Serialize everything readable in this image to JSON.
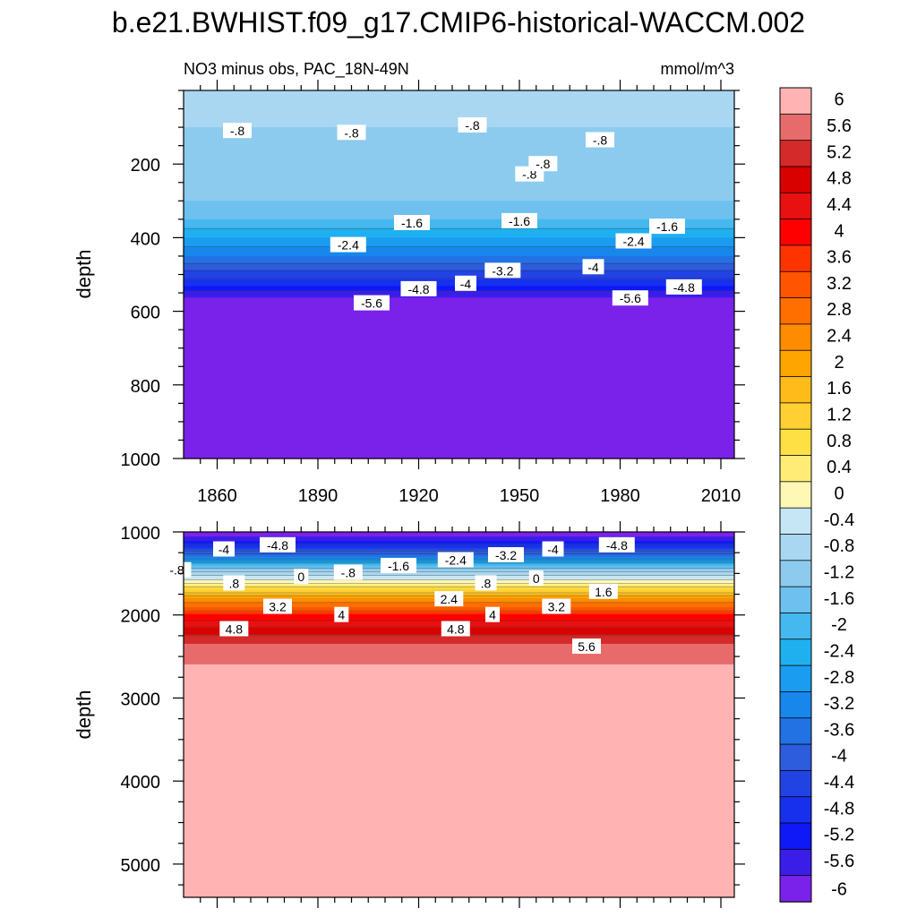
{
  "figure": {
    "title": "b.e21.BWHIST.f09_g17.CMIP6-historical-WACCM.002",
    "subtitle_left": "NO3 minus obs, PAC_18N-49N",
    "subtitle_right": "mmol/m^3"
  },
  "chart_data": [
    {
      "type": "heatmap",
      "panel": "upper",
      "variable": "NO3 minus obs",
      "region": "PAC_18N-49N",
      "units": "mmol/m^3",
      "xlabel": "",
      "ylabel": "depth",
      "xlim": [
        1850,
        2014
      ],
      "ylim": [
        1000,
        0
      ],
      "xticks": [
        1860,
        1890,
        1920,
        1950,
        1980,
        2010
      ],
      "yticks": [
        200,
        400,
        600,
        800,
        1000
      ],
      "depth_profile": [
        {
          "depth": 0,
          "value": -0.6
        },
        {
          "depth": 100,
          "value": -0.8
        },
        {
          "depth": 200,
          "value": -0.9
        },
        {
          "depth": 300,
          "value": -1.2
        },
        {
          "depth": 350,
          "value": -1.6
        },
        {
          "depth": 400,
          "value": -2.4
        },
        {
          "depth": 450,
          "value": -3.2
        },
        {
          "depth": 500,
          "value": -4.2
        },
        {
          "depth": 530,
          "value": -4.8
        },
        {
          "depth": 560,
          "value": -5.6
        },
        {
          "depth": 600,
          "value": -6.0
        },
        {
          "depth": 1000,
          "value": -6.0
        }
      ],
      "contour_labels": [
        {
          "text": "-.8",
          "year": 1866,
          "depth": 110
        },
        {
          "text": "-.8",
          "year": 1900,
          "depth": 115
        },
        {
          "text": "-.8",
          "year": 1936,
          "depth": 95
        },
        {
          "text": "-.8",
          "year": 1974,
          "depth": 135
        },
        {
          "text": "-.8",
          "year": 1953,
          "depth": 228
        },
        {
          "text": "-.8",
          "year": 1957,
          "depth": 200
        },
        {
          "text": "-1.6",
          "year": 1918,
          "depth": 360
        },
        {
          "text": "-1.6",
          "year": 1950,
          "depth": 355
        },
        {
          "text": "-1.6",
          "year": 1994,
          "depth": 370
        },
        {
          "text": "-2.4",
          "year": 1899,
          "depth": 420
        },
        {
          "text": "-2.4",
          "year": 1984,
          "depth": 410
        },
        {
          "text": "-3.2",
          "year": 1945,
          "depth": 490
        },
        {
          "text": "-4",
          "year": 1934,
          "depth": 525
        },
        {
          "text": "-4",
          "year": 1972,
          "depth": 480
        },
        {
          "text": "-4.8",
          "year": 1920,
          "depth": 540
        },
        {
          "text": "-4.8",
          "year": 1999,
          "depth": 535
        },
        {
          "text": "-5.6",
          "year": 1906,
          "depth": 578
        },
        {
          "text": "-5.6",
          "year": 1983,
          "depth": 565
        }
      ]
    },
    {
      "type": "heatmap",
      "panel": "lower",
      "variable": "NO3 minus obs",
      "region": "PAC_18N-49N",
      "units": "mmol/m^3",
      "xlabel": "",
      "ylabel": "depth",
      "xlim": [
        1850,
        2014
      ],
      "ylim": [
        5400,
        1000
      ],
      "yticks": [
        1000,
        2000,
        3000,
        4000,
        5000
      ],
      "depth_profile": [
        {
          "depth": 1000,
          "value": -6.0
        },
        {
          "depth": 1050,
          "value": -5.6
        },
        {
          "depth": 1100,
          "value": -5.2
        },
        {
          "depth": 1200,
          "value": -4.4
        },
        {
          "depth": 1300,
          "value": -3.2
        },
        {
          "depth": 1400,
          "value": -1.6
        },
        {
          "depth": 1500,
          "value": -0.6
        },
        {
          "depth": 1600,
          "value": 0.2
        },
        {
          "depth": 1700,
          "value": 1.2
        },
        {
          "depth": 1800,
          "value": 2.4
        },
        {
          "depth": 1900,
          "value": 3.2
        },
        {
          "depth": 2000,
          "value": 4.0
        },
        {
          "depth": 2100,
          "value": 4.6
        },
        {
          "depth": 2200,
          "value": 5.0
        },
        {
          "depth": 2350,
          "value": 5.6
        },
        {
          "depth": 2600,
          "value": 6.0
        },
        {
          "depth": 5400,
          "value": 6.0
        }
      ],
      "contour_labels": [
        {
          "text": "-4",
          "year": 1862,
          "depth": 1210
        },
        {
          "text": "-4.8",
          "year": 1878,
          "depth": 1160
        },
        {
          "text": "-.8",
          "year": 1848,
          "depth": 1460
        },
        {
          "text": ".8",
          "year": 1865,
          "depth": 1620
        },
        {
          "text": "0",
          "year": 1885,
          "depth": 1540
        },
        {
          "text": "-.8",
          "year": 1899,
          "depth": 1490
        },
        {
          "text": "-1.6",
          "year": 1914,
          "depth": 1410
        },
        {
          "text": "-2.4",
          "year": 1931,
          "depth": 1340
        },
        {
          "text": "-3.2",
          "year": 1946,
          "depth": 1280
        },
        {
          "text": "-4",
          "year": 1960,
          "depth": 1210
        },
        {
          "text": "-4.8",
          "year": 1979,
          "depth": 1160
        },
        {
          "text": ".8",
          "year": 1940,
          "depth": 1620
        },
        {
          "text": "0",
          "year": 1955,
          "depth": 1560
        },
        {
          "text": "1.6",
          "year": 1975,
          "depth": 1720
        },
        {
          "text": "3.2",
          "year": 1878,
          "depth": 1900
        },
        {
          "text": "4",
          "year": 1897,
          "depth": 2000
        },
        {
          "text": "2.4",
          "year": 1929,
          "depth": 1810
        },
        {
          "text": "4",
          "year": 1942,
          "depth": 2000
        },
        {
          "text": "3.2",
          "year": 1961,
          "depth": 1900
        },
        {
          "text": "4.8",
          "year": 1865,
          "depth": 2170
        },
        {
          "text": "4.8",
          "year": 1931,
          "depth": 2170
        },
        {
          "text": "5.6",
          "year": 1970,
          "depth": 2380
        }
      ]
    }
  ],
  "colorbar": {
    "levels": [
      {
        "label": "6",
        "color": "#ffb3b3"
      },
      {
        "label": "5.6",
        "color": "#e86b6b"
      },
      {
        "label": "5.2",
        "color": "#d42a2a"
      },
      {
        "label": "4.8",
        "color": "#d90000"
      },
      {
        "label": "4.4",
        "color": "#e81010"
      },
      {
        "label": "4",
        "color": "#ff0000"
      },
      {
        "label": "3.6",
        "color": "#ff3300"
      },
      {
        "label": "3.2",
        "color": "#ff5500"
      },
      {
        "label": "2.8",
        "color": "#ff6f00"
      },
      {
        "label": "2.4",
        "color": "#ff8c00"
      },
      {
        "label": "2",
        "color": "#ffa500"
      },
      {
        "label": "1.6",
        "color": "#ffbb1a"
      },
      {
        "label": "1.2",
        "color": "#ffcf33"
      },
      {
        "label": "0.8",
        "color": "#ffe044"
      },
      {
        "label": "0.4",
        "color": "#ffec77"
      },
      {
        "label": "0",
        "color": "#fff7b3"
      },
      {
        "label": "-0.4",
        "color": "#c6e6f5"
      },
      {
        "label": "-0.8",
        "color": "#a9d7f1"
      },
      {
        "label": "-1.2",
        "color": "#8ccbee"
      },
      {
        "label": "-1.6",
        "color": "#6ec0ee"
      },
      {
        "label": "-2",
        "color": "#46b8f0"
      },
      {
        "label": "-2.4",
        "color": "#1fb0f0"
      },
      {
        "label": "-2.8",
        "color": "#1a9cf0"
      },
      {
        "label": "-3.2",
        "color": "#1887ec"
      },
      {
        "label": "-3.6",
        "color": "#2272e4"
      },
      {
        "label": "-4",
        "color": "#2d5cdc"
      },
      {
        "label": "-4.4",
        "color": "#2243e4"
      },
      {
        "label": "-4.8",
        "color": "#1730ee"
      },
      {
        "label": "-5.2",
        "color": "#0f18f7"
      },
      {
        "label": "-5.6",
        "color": "#3a1ee8"
      },
      {
        "label": "-6",
        "color": "#7b22ea"
      }
    ]
  }
}
